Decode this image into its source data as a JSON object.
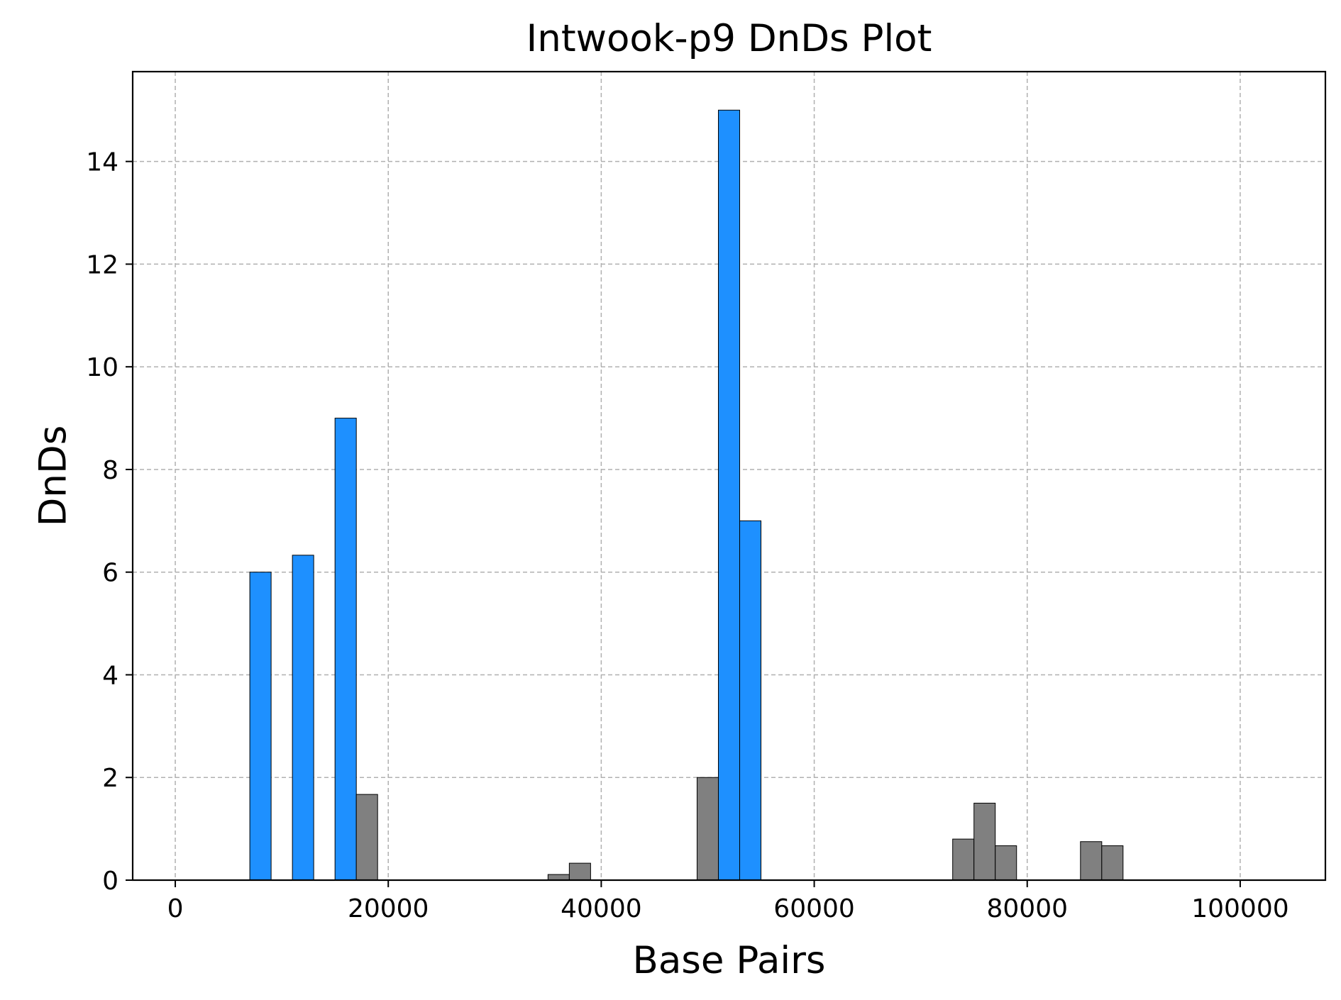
{
  "chart_data": {
    "type": "bar",
    "title": "Intwook-p9 DnDs Plot",
    "xlabel": "Base Pairs",
    "ylabel": "DnDs",
    "xlim": [
      -4000,
      108000
    ],
    "ylim": [
      0,
      15.75
    ],
    "xticks": [
      0,
      20000,
      40000,
      60000,
      80000,
      100000
    ],
    "yticks": [
      0,
      2,
      4,
      6,
      8,
      10,
      12,
      14
    ],
    "bar_width": 2000,
    "grid": true,
    "colors": {
      "highlight": "#1e90ff",
      "normal": "#808080"
    },
    "bars": [
      {
        "x": 8000,
        "value": 6.0,
        "color": "highlight"
      },
      {
        "x": 12000,
        "value": 6.33,
        "color": "highlight"
      },
      {
        "x": 16000,
        "value": 9.0,
        "color": "highlight"
      },
      {
        "x": 18000,
        "value": 1.67,
        "color": "normal"
      },
      {
        "x": 36000,
        "value": 0.11,
        "color": "normal"
      },
      {
        "x": 38000,
        "value": 0.33,
        "color": "normal"
      },
      {
        "x": 50000,
        "value": 2.0,
        "color": "normal"
      },
      {
        "x": 52000,
        "value": 15.0,
        "color": "highlight"
      },
      {
        "x": 54000,
        "value": 7.0,
        "color": "highlight"
      },
      {
        "x": 74000,
        "value": 0.8,
        "color": "normal"
      },
      {
        "x": 76000,
        "value": 1.5,
        "color": "normal"
      },
      {
        "x": 78000,
        "value": 0.67,
        "color": "normal"
      },
      {
        "x": 86000,
        "value": 0.75,
        "color": "normal"
      },
      {
        "x": 88000,
        "value": 0.67,
        "color": "normal"
      }
    ]
  }
}
